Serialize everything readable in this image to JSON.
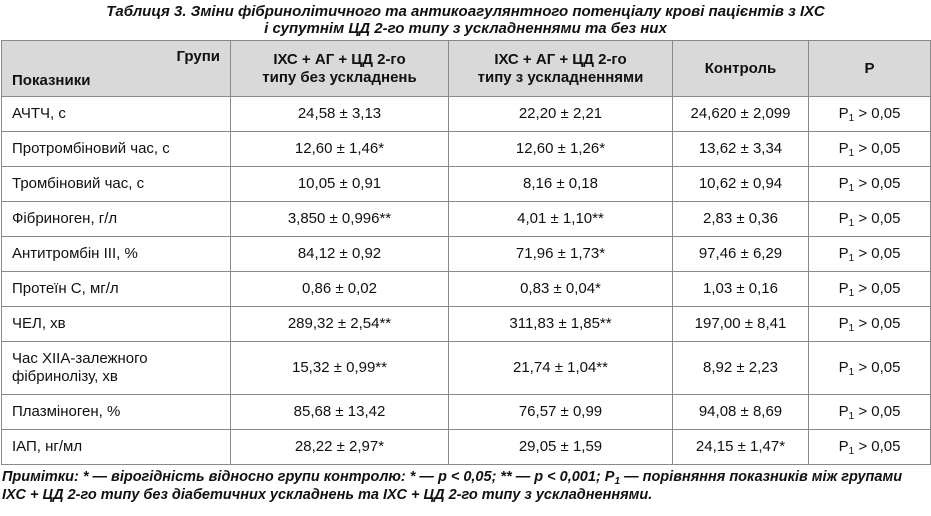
{
  "title": {
    "line1": "Таблиця 3.  Зміни фібринолітичного та антикоагулянтного потенціалу крові пацієнтів з ІХС",
    "line2": "і супутнім ЦД 2-го типу з ускладненнями та без них"
  },
  "table": {
    "header": {
      "groups": "Групи",
      "indicators": "Показники",
      "columns": [
        [
          "ІХС + АГ + ЦД 2-го",
          "типу без ускладнень"
        ],
        [
          "ІХС + АГ + ЦД 2-го",
          "типу з ускладненнями"
        ],
        [
          "Контроль"
        ],
        [
          "P"
        ]
      ]
    },
    "rows": [
      {
        "label": "АЧТЧ, с",
        "cells": [
          "24,58 ± 3,13",
          "22,20 ± 2,21",
          "24,620 ± 2,099"
        ],
        "p": {
          "base": "P",
          "sub": "1",
          "cond": "> 0,05"
        }
      },
      {
        "label": "Протромбіновий час, с",
        "cells": [
          "12,60 ± 1,46*",
          "12,60 ± 1,26*",
          "13,62 ± 3,34"
        ],
        "p": {
          "base": "P",
          "sub": "1",
          "cond": "> 0,05"
        }
      },
      {
        "label": "Тромбіновий час, с",
        "cells": [
          "10,05 ± 0,91",
          "8,16 ± 0,18",
          "10,62 ± 0,94"
        ],
        "p": {
          "base": "P",
          "sub": "1",
          "cond": "> 0,05"
        }
      },
      {
        "label": "Фібриноген, г/л",
        "cells": [
          "3,850 ± 0,996**",
          "4,01 ± 1,10**",
          "2,83 ± 0,36"
        ],
        "p": {
          "base": "P",
          "sub": "1",
          "cond": "> 0,05"
        }
      },
      {
        "label": "Антитромбін ІІІ, %",
        "cells": [
          "84,12 ± 0,92",
          "71,96 ± 1,73*",
          "97,46 ± 6,29"
        ],
        "p": {
          "base": "P",
          "sub": "1",
          "cond": "> 0,05"
        }
      },
      {
        "label": "Протеїн С, мг/л",
        "cells": [
          "0,86 ± 0,02",
          "0,83 ± 0,04*",
          "1,03 ± 0,16"
        ],
        "p": {
          "base": "P",
          "sub": "1",
          "cond": "> 0,05"
        }
      },
      {
        "label": "ЧЕЛ, хв",
        "cells": [
          "289,32 ± 2,54**",
          "311,83 ± 1,85**",
          "197,00 ± 8,41"
        ],
        "p": {
          "base": "P",
          "sub": "1",
          "cond": "> 0,05"
        }
      },
      {
        "label": "Час ХІІА-залежного фібринолізу, хв",
        "cells": [
          "15,32 ± 0,99**",
          "21,74 ± 1,04**",
          "8,92 ± 2,23"
        ],
        "p": {
          "base": "P",
          "sub": "1",
          "cond": "> 0,05"
        }
      },
      {
        "label": "Плазміноген, %",
        "cells": [
          "85,68 ± 13,42",
          "76,57 ± 0,99",
          "94,08 ± 8,69"
        ],
        "p": {
          "base": "P",
          "sub": "1",
          "cond": "> 0,05"
        }
      },
      {
        "label": "ІАП, нг/мл",
        "cells": [
          "28,22 ± 2,97*",
          "29,05 ± 1,59",
          "24,15 ± 1,47*"
        ],
        "p": {
          "base": "P",
          "sub": "1",
          "cond": "> 0,05"
        }
      }
    ]
  },
  "note": {
    "label": "Примітки:",
    "text1": "* — вірогідність відносно групи контролю: * — p < 0,05; ** — p < 0,001; P",
    "sub": "1",
    "text2": "— порівняння показників між групами ІХС + ЦД 2-го типу без діабетичних ускладнень та ІХС + ЦД 2-го типу з ускладненнями."
  }
}
